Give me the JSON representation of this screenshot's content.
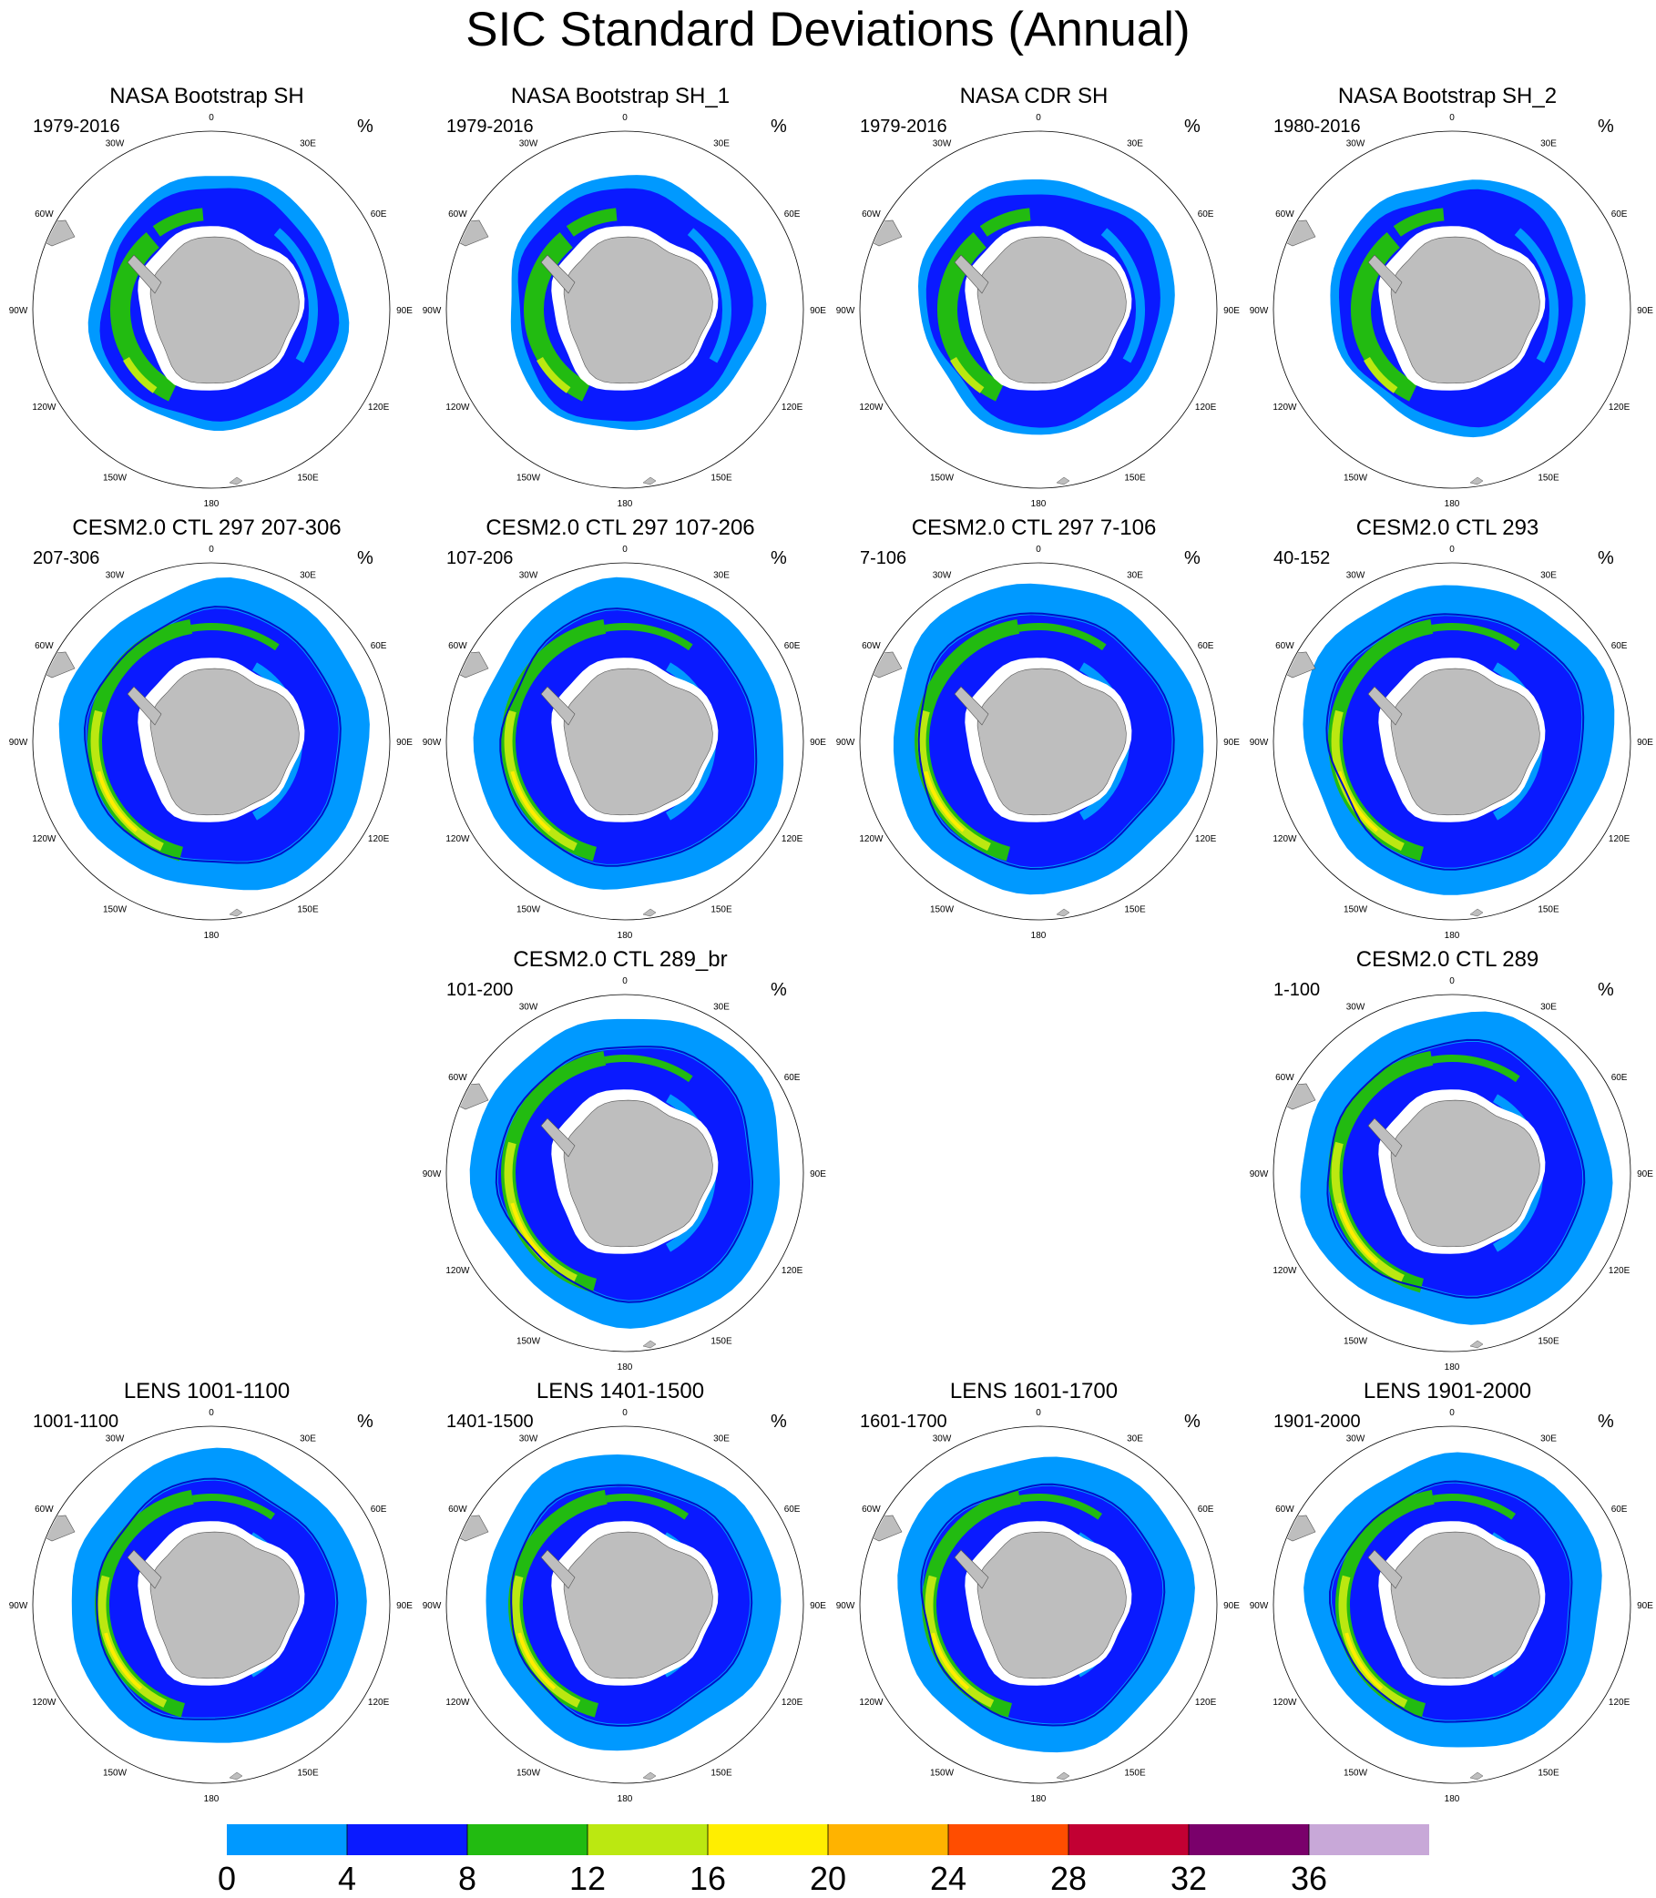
{
  "title": "SIC Standard Deviations (Annual)",
  "unit_label": "%",
  "longitude_labels": [
    "0",
    "30E",
    "60E",
    "90E",
    "120E",
    "150E",
    "180",
    "150W",
    "120W",
    "90W",
    "60W",
    "30W"
  ],
  "panels": [
    {
      "title": "NASA Bootstrap SH",
      "period": "1979-2016",
      "row": 0,
      "col": 0,
      "kind": "obs"
    },
    {
      "title": "NASA Bootstrap SH_1",
      "period": "1979-2016",
      "row": 0,
      "col": 1,
      "kind": "obs"
    },
    {
      "title": "NASA CDR SH",
      "period": "1979-2016",
      "row": 0,
      "col": 2,
      "kind": "obs"
    },
    {
      "title": "NASA Bootstrap SH_2",
      "period": "1980-2016",
      "row": 0,
      "col": 3,
      "kind": "obs"
    },
    {
      "title": "CESM2.0 CTL 297 207-306",
      "period": "207-306",
      "row": 1,
      "col": 0,
      "kind": "model"
    },
    {
      "title": "CESM2.0 CTL 297 107-206",
      "period": "107-206",
      "row": 1,
      "col": 1,
      "kind": "model"
    },
    {
      "title": "CESM2.0 CTL 297 7-106",
      "period": "7-106",
      "row": 1,
      "col": 2,
      "kind": "model"
    },
    {
      "title": "CESM2.0 CTL 293",
      "period": "40-152",
      "row": 1,
      "col": 3,
      "kind": "model"
    },
    {
      "title": "CESM2.0 CTL 289_br",
      "period": "101-200",
      "row": 2,
      "col": 1,
      "kind": "model"
    },
    {
      "title": "CESM2.0 CTL 289",
      "period": "1-100",
      "row": 2,
      "col": 3,
      "kind": "model"
    },
    {
      "title": "LENS 1001-1100",
      "period": "1001-1100",
      "row": 3,
      "col": 0,
      "kind": "lens"
    },
    {
      "title": "LENS 1401-1500",
      "period": "1401-1500",
      "row": 3,
      "col": 1,
      "kind": "lens"
    },
    {
      "title": "LENS 1601-1700",
      "period": "1601-1700",
      "row": 3,
      "col": 2,
      "kind": "lens"
    },
    {
      "title": "LENS 1901-2000",
      "period": "1901-2000",
      "row": 3,
      "col": 3,
      "kind": "lens"
    }
  ],
  "colorbar": {
    "ticks": [
      "0",
      "4",
      "8",
      "12",
      "16",
      "20",
      "24",
      "28",
      "32",
      "36"
    ],
    "colors": [
      "#0099ff",
      "#0a1aff",
      "#22bb11",
      "#bbe811",
      "#ffee00",
      "#ffb300",
      "#ff4d00",
      "#c20033",
      "#7a006b",
      "#c8a8d8"
    ]
  },
  "colors": {
    "land": "#bebebe",
    "band_0_4": "#0099ff",
    "band_4_8": "#0a1aff",
    "band_8_12": "#22bb11",
    "band_12_16": "#bbe811",
    "band_16_20": "#ffee00"
  }
}
